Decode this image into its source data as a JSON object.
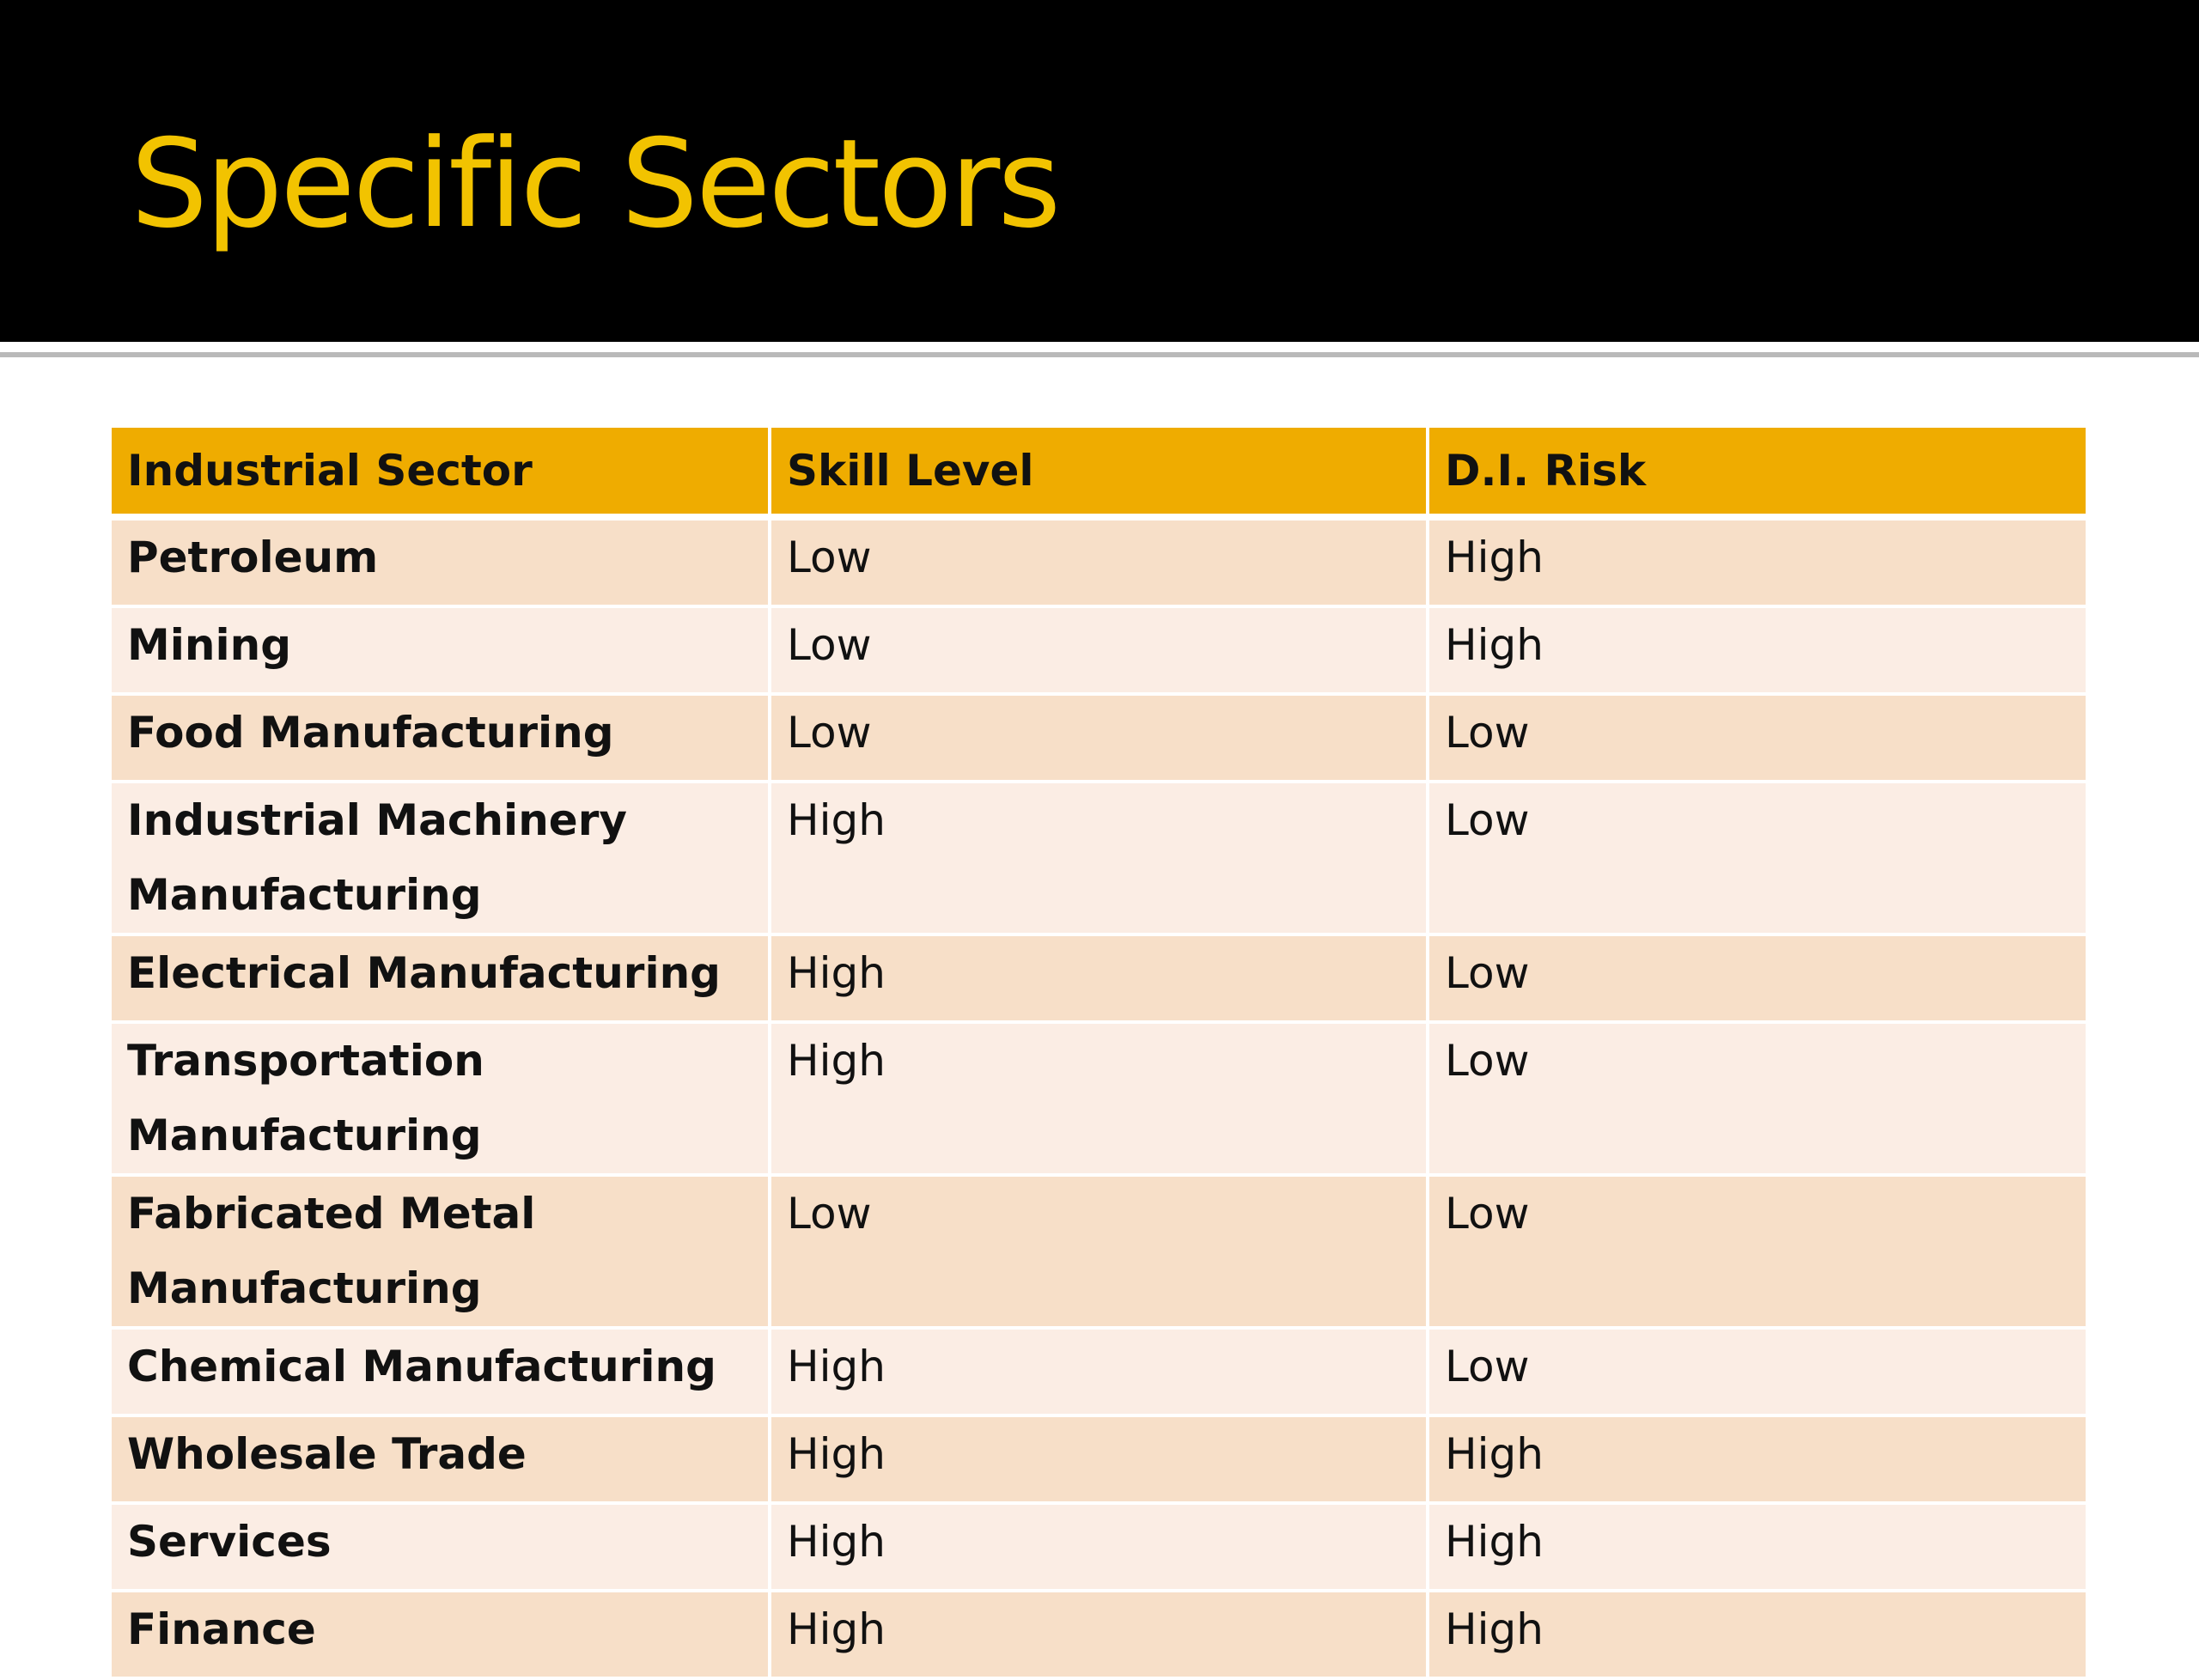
{
  "slide": {
    "title": "Specific Sectors"
  },
  "table": {
    "headers": [
      "Industrial Sector",
      "Skill Level",
      "D.I. Risk"
    ],
    "rows": [
      [
        "Petroleum",
        "Low",
        "High"
      ],
      [
        "Mining",
        "Low",
        "High"
      ],
      [
        "Food Manufacturing",
        "Low",
        "Low"
      ],
      [
        "Industrial Machinery Manufacturing",
        "High",
        "Low"
      ],
      [
        "Electrical Manufacturing",
        "High",
        "Low"
      ],
      [
        "Transportation Manufacturing",
        "High",
        "Low"
      ],
      [
        "Fabricated Metal Manufacturing",
        "Low",
        "Low"
      ],
      [
        "Chemical Manufacturing",
        "High",
        "Low"
      ],
      [
        "Wholesale Trade",
        "High",
        "High"
      ],
      [
        "Services",
        "High",
        "High"
      ],
      [
        "Finance",
        "High",
        "High"
      ]
    ]
  },
  "colors": {
    "title_band": "#000000",
    "title_text": "#f2c300",
    "header_fill": "#efac00",
    "row_fill_odd": "#f7dfc8",
    "row_fill_even": "#fbede4"
  }
}
